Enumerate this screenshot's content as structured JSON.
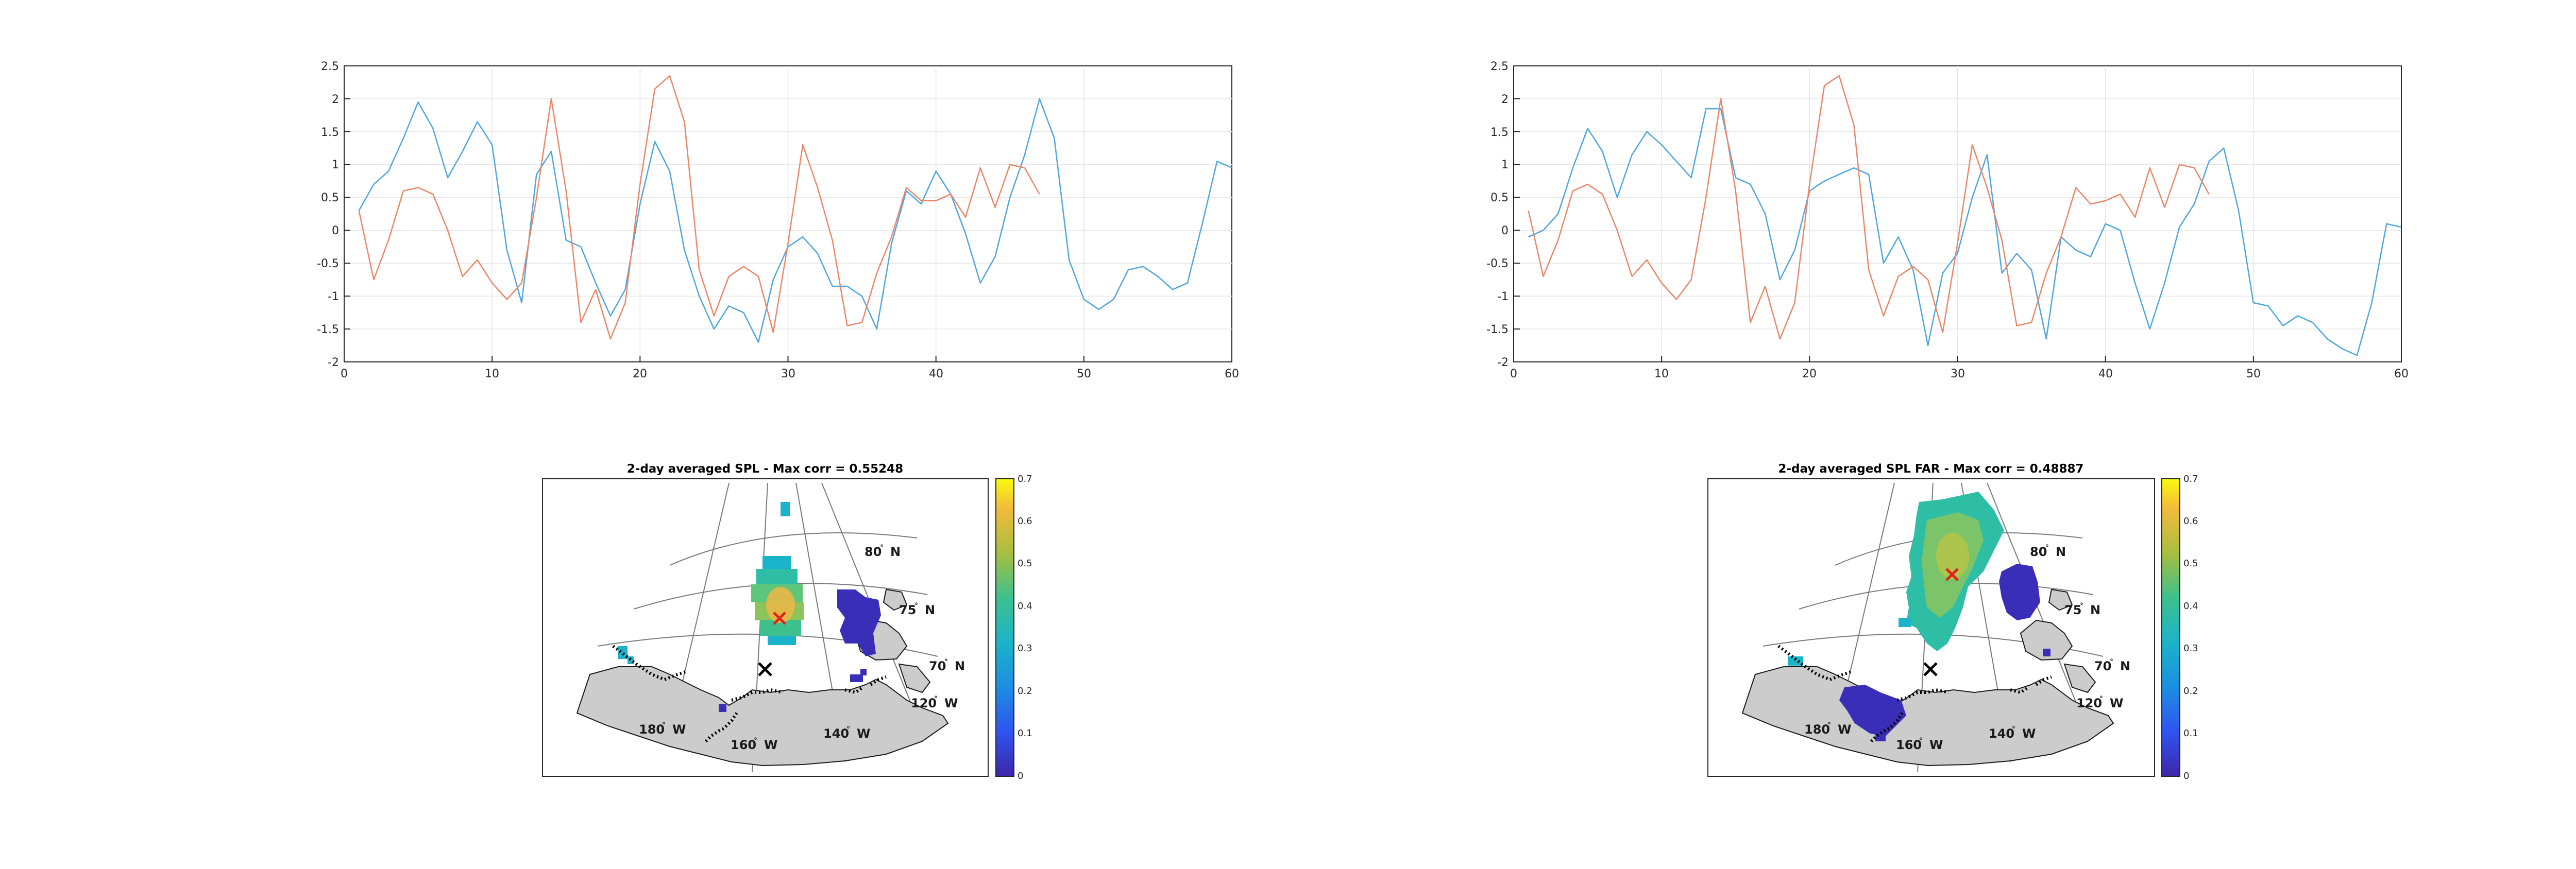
{
  "colors": {
    "series1": "#4DA6DE",
    "series2": "#EB8566",
    "land": "#CCCCCC",
    "low_corr": "#3A2DB8",
    "marker": "#E0231B",
    "axis": "#262626",
    "grid": "#E6E6E6"
  },
  "chart_data": [
    {
      "type": "line",
      "xlim": [
        0,
        60
      ],
      "ylim": [
        -2,
        2.5
      ],
      "xticks": [
        "0",
        "10",
        "20",
        "30",
        "40",
        "50",
        "60"
      ],
      "yticks": [
        "-2",
        "-1.5",
        "-1",
        "-0.5",
        "0",
        "0.5",
        "1",
        "1.5",
        "2",
        "2.5"
      ],
      "grid": true,
      "series": [
        {
          "color": "series1",
          "x": [
            1,
            2,
            3,
            4,
            5,
            6,
            7,
            8,
            9,
            10,
            11,
            12,
            13,
            14,
            15,
            16,
            17,
            18,
            19,
            20,
            21,
            22,
            23,
            24,
            25,
            26,
            27,
            28,
            29,
            30,
            31,
            32,
            33,
            34,
            35,
            36,
            37,
            38,
            39,
            40,
            41,
            42,
            43,
            44,
            45,
            46,
            47,
            48,
            49,
            50,
            51,
            52,
            53,
            54,
            55,
            56,
            57,
            58,
            59,
            60
          ],
          "y": [
            0.3,
            0.7,
            0.9,
            1.4,
            1.95,
            1.55,
            0.8,
            1.2,
            1.65,
            1.3,
            -0.3,
            -1.1,
            0.85,
            1.2,
            -0.15,
            -0.25,
            -0.8,
            -1.3,
            -0.9,
            0.4,
            1.35,
            0.9,
            -0.3,
            -1.0,
            -1.5,
            -1.15,
            -1.25,
            -1.7,
            -0.75,
            -0.25,
            -0.1,
            -0.35,
            -0.85,
            -0.85,
            -1.0,
            -1.5,
            -0.2,
            0.6,
            0.4,
            0.9,
            0.55,
            -0.05,
            -0.8,
            -0.4,
            0.5,
            1.15,
            2.0,
            1.4,
            -0.45,
            -1.05,
            -1.2,
            -1.05,
            -0.6,
            -0.55,
            -0.7,
            -0.9,
            -0.8,
            0.1,
            1.05,
            0.95
          ]
        },
        {
          "color": "series2",
          "x": [
            1,
            2,
            3,
            4,
            5,
            6,
            7,
            8,
            9,
            10,
            11,
            12,
            13,
            14,
            15,
            16,
            17,
            18,
            19,
            20,
            21,
            22,
            23,
            24,
            25,
            26,
            27,
            28,
            29,
            30,
            31,
            32,
            33,
            34,
            35,
            36,
            37,
            38,
            39,
            40,
            41,
            42,
            43,
            44,
            45,
            46,
            47
          ],
          "y": [
            0.3,
            -0.75,
            -0.15,
            0.6,
            0.65,
            0.55,
            0.0,
            -0.7,
            -0.45,
            -0.8,
            -1.05,
            -0.8,
            0.5,
            2.0,
            0.6,
            -1.4,
            -0.9,
            -1.65,
            -1.1,
            0.7,
            2.15,
            2.35,
            1.65,
            -0.6,
            -1.3,
            -0.7,
            -0.55,
            -0.7,
            -1.55,
            -0.2,
            1.3,
            0.65,
            -0.15,
            -1.45,
            -1.4,
            -0.65,
            -0.1,
            0.65,
            0.45,
            0.45,
            0.55,
            0.2,
            0.95,
            0.35,
            1.0,
            0.95,
            0.55
          ]
        }
      ]
    },
    {
      "type": "line",
      "xlim": [
        0,
        60
      ],
      "ylim": [
        -2,
        2.5
      ],
      "xticks": [
        "0",
        "10",
        "20",
        "30",
        "40",
        "50",
        "60"
      ],
      "yticks": [
        "-2",
        "-1.5",
        "-1",
        "-0.5",
        "0",
        "0.5",
        "1",
        "1.5",
        "2",
        "2.5"
      ],
      "grid": true,
      "series": [
        {
          "color": "series1",
          "x": [
            1,
            2,
            3,
            4,
            5,
            6,
            7,
            8,
            9,
            10,
            11,
            12,
            13,
            14,
            15,
            16,
            17,
            18,
            19,
            20,
            21,
            22,
            23,
            24,
            25,
            26,
            27,
            28,
            29,
            30,
            31,
            32,
            33,
            34,
            35,
            36,
            37,
            38,
            39,
            40,
            41,
            42,
            43,
            44,
            45,
            46,
            47,
            48,
            49,
            50,
            51,
            52,
            53,
            54,
            55,
            56,
            57,
            58,
            59,
            60
          ],
          "y": [
            -0.1,
            0.0,
            0.25,
            0.95,
            1.55,
            1.2,
            0.5,
            1.15,
            1.5,
            1.3,
            1.05,
            0.8,
            1.85,
            1.85,
            0.8,
            0.7,
            0.25,
            -0.75,
            -0.3,
            0.6,
            0.75,
            0.85,
            0.95,
            0.85,
            -0.5,
            -0.1,
            -0.6,
            -1.75,
            -0.65,
            -0.35,
            0.5,
            1.15,
            -0.65,
            -0.35,
            -0.6,
            -1.65,
            -0.1,
            -0.3,
            -0.4,
            0.1,
            0.0,
            -0.8,
            -1.5,
            -0.8,
            0.05,
            0.4,
            1.05,
            1.25,
            0.3,
            -1.1,
            -1.15,
            -1.45,
            -1.3,
            -1.4,
            -1.65,
            -1.8,
            -1.9,
            -1.1,
            0.1,
            0.05
          ]
        },
        {
          "color": "series2",
          "x": [
            1,
            2,
            3,
            4,
            5,
            6,
            7,
            8,
            9,
            10,
            11,
            12,
            13,
            14,
            15,
            16,
            17,
            18,
            19,
            20,
            21,
            22,
            23,
            24,
            25,
            26,
            27,
            28,
            29,
            30,
            31,
            32,
            33,
            34,
            35,
            36,
            37,
            38,
            39,
            40,
            41,
            42,
            43,
            44,
            45,
            46,
            47
          ],
          "y": [
            0.3,
            -0.7,
            -0.15,
            0.6,
            0.7,
            0.55,
            0.0,
            -0.7,
            -0.45,
            -0.8,
            -1.05,
            -0.75,
            0.5,
            2.0,
            0.6,
            -1.4,
            -0.85,
            -1.65,
            -1.1,
            0.7,
            2.2,
            2.35,
            1.6,
            -0.6,
            -1.3,
            -0.7,
            -0.55,
            -0.75,
            -1.55,
            -0.2,
            1.3,
            0.65,
            -0.15,
            -1.45,
            -1.4,
            -0.65,
            -0.1,
            0.65,
            0.4,
            0.45,
            0.55,
            0.2,
            0.95,
            0.35,
            1.0,
            0.95,
            0.55
          ]
        }
      ]
    },
    {
      "type": "heatmap",
      "title": "2-day averaged SPL - Max corr = 0.55248",
      "colorbar": {
        "range": [
          0,
          0.7
        ],
        "ticks": [
          "0",
          "0.1",
          "0.2",
          "0.3",
          "0.4",
          "0.5",
          "0.6",
          "0.7"
        ]
      },
      "lat_labels": [
        {
          "deg": "80",
          "hemi": "N"
        },
        {
          "deg": "75",
          "hemi": "N"
        },
        {
          "deg": "70",
          "hemi": "N"
        }
      ],
      "lon_labels": [
        {
          "deg": "120",
          "hemi": "W"
        },
        {
          "deg": "180",
          "hemi": "W"
        },
        {
          "deg": "160",
          "hemi": "W"
        },
        {
          "deg": "140",
          "hemi": "W"
        }
      ],
      "max_marker": "red-x",
      "station_marker": "black-x"
    },
    {
      "type": "heatmap",
      "title": "2-day averaged SPL FAR - Max corr = 0.48887",
      "colorbar": {
        "range": [
          0,
          0.7
        ],
        "ticks": [
          "0",
          "0.1",
          "0.2",
          "0.3",
          "0.4",
          "0.5",
          "0.6",
          "0.7"
        ]
      },
      "lat_labels": [
        {
          "deg": "80",
          "hemi": "N"
        },
        {
          "deg": "75",
          "hemi": "N"
        },
        {
          "deg": "70",
          "hemi": "N"
        }
      ],
      "lon_labels": [
        {
          "deg": "120",
          "hemi": "W"
        },
        {
          "deg": "180",
          "hemi": "W"
        },
        {
          "deg": "160",
          "hemi": "W"
        },
        {
          "deg": "140",
          "hemi": "W"
        }
      ],
      "max_marker": "red-x",
      "station_marker": "black-x"
    }
  ]
}
